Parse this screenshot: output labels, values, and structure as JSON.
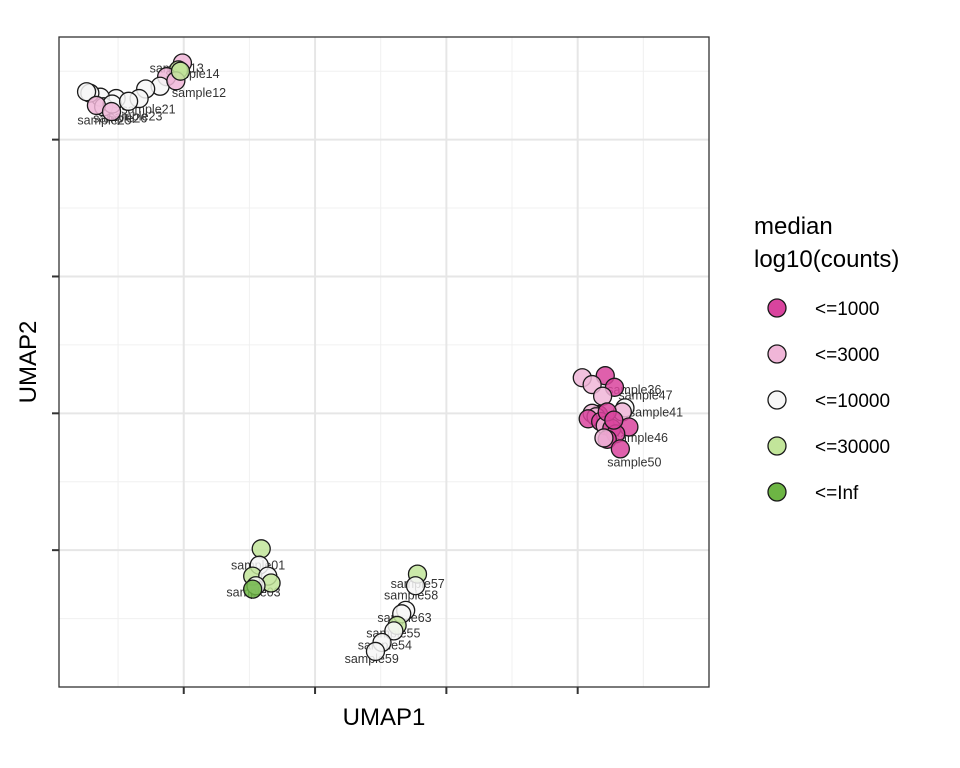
{
  "chart_data": {
    "type": "scatter",
    "xlabel": "UMAP1",
    "ylabel": "UMAP2",
    "xlim": [
      -1.9,
      8.0
    ],
    "ylim": [
      -4.0,
      5.5
    ],
    "x_ticks": [
      0,
      2,
      4,
      6
    ],
    "y_ticks": [
      -2,
      0,
      2,
      4
    ],
    "grid": true,
    "legend": {
      "title_lines": [
        "median",
        "log10(counts)"
      ],
      "position": "right",
      "entries": [
        {
          "label": "<=1000",
          "color": "#d9449e"
        },
        {
          "label": "<=3000",
          "color": "#f0b6d8"
        },
        {
          "label": "<=10000",
          "color": "#f7f7f7"
        },
        {
          "label": "<=30000",
          "color": "#c2e59a"
        },
        {
          "label": "<=Inf",
          "color": "#6db544"
        }
      ]
    },
    "points": [
      {
        "x": -0.02,
        "y": 5.12,
        "cat": 1
      },
      {
        "x": -0.08,
        "y": 5.02,
        "cat": 3
      },
      {
        "x": -0.26,
        "y": 4.92,
        "cat": 1
      },
      {
        "x": -0.36,
        "y": 4.78,
        "cat": 2
      },
      {
        "x": -0.12,
        "y": 4.86,
        "cat": 1
      },
      {
        "x": -0.58,
        "y": 4.74,
        "cat": 2
      },
      {
        "x": -0.68,
        "y": 4.6,
        "cat": 2
      },
      {
        "x": -1.03,
        "y": 4.6,
        "cat": 2
      },
      {
        "x": -1.27,
        "y": 4.62,
        "cat": 2
      },
      {
        "x": -1.22,
        "y": 4.48,
        "cat": 2
      },
      {
        "x": -1.43,
        "y": 4.68,
        "cat": 2
      },
      {
        "x": -1.48,
        "y": 4.7,
        "cat": 2
      },
      {
        "x": -1.09,
        "y": 4.52,
        "cat": 2
      },
      {
        "x": -0.84,
        "y": 4.56,
        "cat": 2
      },
      {
        "x": -1.33,
        "y": 4.5,
        "cat": 1
      },
      {
        "x": -1.1,
        "y": 4.41,
        "cat": 1
      },
      {
        "x": -0.05,
        "y": 5.0,
        "cat": 3
      },
      {
        "x": 1.18,
        "y": -1.98,
        "cat": 3
      },
      {
        "x": 1.15,
        "y": -2.22,
        "cat": 2
      },
      {
        "x": 1.05,
        "y": -2.38,
        "cat": 3
      },
      {
        "x": 1.28,
        "y": -2.38,
        "cat": 2
      },
      {
        "x": 1.33,
        "y": -2.48,
        "cat": 3
      },
      {
        "x": 1.1,
        "y": -2.52,
        "cat": 2
      },
      {
        "x": 1.05,
        "y": -2.57,
        "cat": 4
      },
      {
        "x": 3.56,
        "y": -2.35,
        "cat": 3
      },
      {
        "x": 3.53,
        "y": -2.52,
        "cat": 2
      },
      {
        "x": 3.38,
        "y": -2.88,
        "cat": 2
      },
      {
        "x": 3.32,
        "y": -2.93,
        "cat": 2
      },
      {
        "x": 3.25,
        "y": -3.1,
        "cat": 3
      },
      {
        "x": 3.2,
        "y": -3.18,
        "cat": 2
      },
      {
        "x": 3.02,
        "y": -3.35,
        "cat": 2
      },
      {
        "x": 2.92,
        "y": -3.48,
        "cat": 2
      },
      {
        "x": 6.07,
        "y": 0.52,
        "cat": 1
      },
      {
        "x": 6.42,
        "y": 0.55,
        "cat": 0
      },
      {
        "x": 6.22,
        "y": 0.42,
        "cat": 1
      },
      {
        "x": 6.56,
        "y": 0.38,
        "cat": 0
      },
      {
        "x": 6.38,
        "y": 0.25,
        "cat": 1
      },
      {
        "x": 6.72,
        "y": 0.08,
        "cat": 2
      },
      {
        "x": 6.68,
        "y": 0.02,
        "cat": 1
      },
      {
        "x": 6.32,
        "y": -0.02,
        "cat": 0
      },
      {
        "x": 6.22,
        "y": 0.0,
        "cat": 1
      },
      {
        "x": 6.28,
        "y": -0.05,
        "cat": 1
      },
      {
        "x": 6.16,
        "y": -0.08,
        "cat": 0
      },
      {
        "x": 6.35,
        "y": -0.12,
        "cat": 0
      },
      {
        "x": 6.42,
        "y": -0.18,
        "cat": 1
      },
      {
        "x": 6.52,
        "y": -0.22,
        "cat": 0
      },
      {
        "x": 6.78,
        "y": -0.2,
        "cat": 0
      },
      {
        "x": 6.58,
        "y": -0.3,
        "cat": 0
      },
      {
        "x": 6.45,
        "y": -0.38,
        "cat": 0
      },
      {
        "x": 6.4,
        "y": -0.36,
        "cat": 1
      },
      {
        "x": 6.65,
        "y": -0.52,
        "cat": 0
      },
      {
        "x": 6.45,
        "y": 0.02,
        "cat": 0
      },
      {
        "x": 6.55,
        "y": -0.1,
        "cat": 0
      }
    ],
    "labels": [
      {
        "text": "sample13",
        "x": -0.52,
        "y": 4.98
      },
      {
        "text": "sample14",
        "x": -0.28,
        "y": 4.9
      },
      {
        "text": "sample12",
        "x": -0.18,
        "y": 4.62
      },
      {
        "text": "sample21",
        "x": -0.95,
        "y": 4.38
      },
      {
        "text": "sample23",
        "x": -1.15,
        "y": 4.28
      },
      {
        "text": "sample25",
        "x": -1.62,
        "y": 4.22
      },
      {
        "text": "sample26",
        "x": -1.38,
        "y": 4.25
      },
      {
        "text": "sample01",
        "x": 0.72,
        "y": -2.28
      },
      {
        "text": "sample03",
        "x": 0.65,
        "y": -2.68
      },
      {
        "text": "sample57",
        "x": 3.15,
        "y": -2.55
      },
      {
        "text": "sample58",
        "x": 3.05,
        "y": -2.72
      },
      {
        "text": "sample63",
        "x": 2.95,
        "y": -3.05
      },
      {
        "text": "sample55",
        "x": 2.78,
        "y": -3.28
      },
      {
        "text": "sample54",
        "x": 2.65,
        "y": -3.45
      },
      {
        "text": "sample59",
        "x": 2.45,
        "y": -3.65
      },
      {
        "text": "sample36",
        "x": 6.45,
        "y": 0.28
      },
      {
        "text": "sample47",
        "x": 6.62,
        "y": 0.2
      },
      {
        "text": "sample41",
        "x": 6.78,
        "y": -0.05
      },
      {
        "text": "sample46",
        "x": 6.55,
        "y": -0.42
      },
      {
        "text": "sample50",
        "x": 6.45,
        "y": -0.78
      }
    ]
  }
}
